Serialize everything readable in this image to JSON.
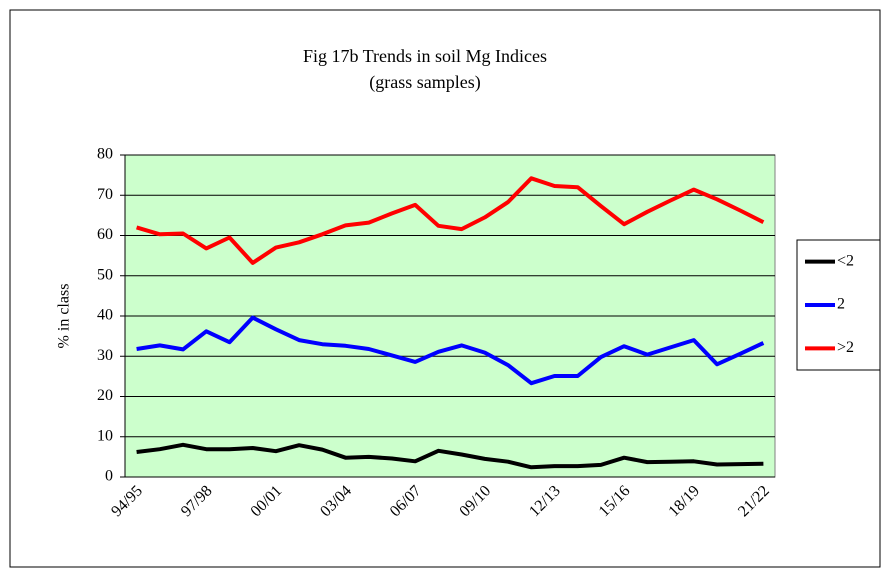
{
  "chart_data": {
    "type": "line",
    "title": "Fig 17b Trends in soil Mg Indices",
    "subtitle": "(grass samples)",
    "y_label": "% in class",
    "categories": [
      "94/95",
      null,
      null,
      "97/98",
      null,
      null,
      "00/01",
      null,
      null,
      "03/04",
      null,
      null,
      "06/07",
      null,
      null,
      "09/10",
      null,
      null,
      "12/13",
      null,
      null,
      "15/16",
      null,
      null,
      "18/19",
      null,
      null,
      "21/22"
    ],
    "series": [
      {
        "name": "<2",
        "color": "#000000",
        "values": [
          6.2,
          6.9,
          8,
          6.9,
          6.9,
          7.2,
          6.4,
          7.9,
          6.8,
          4.8,
          5,
          4.6,
          3.9,
          6.5,
          5.6,
          4.5,
          3.8,
          2.4,
          2.7,
          2.7,
          3,
          4.8,
          3.7,
          3.8,
          3.9,
          3.1,
          3.2,
          3.3
        ]
      },
      {
        "name": "2",
        "color": "#0000ff",
        "values": [
          31.8,
          32.7,
          31.7,
          36.2,
          33.5,
          39.6,
          36.7,
          34,
          33,
          32.6,
          31.8,
          30.2,
          28.6,
          31.1,
          32.7,
          30.9,
          27.8,
          23.3,
          25.1,
          25.1,
          29.8,
          32.5,
          30.4,
          32.2,
          34,
          28,
          30.6,
          33.3
        ]
      },
      {
        "name": ">2",
        "color": "#ff0000",
        "values": [
          62,
          60.3,
          60.5,
          56.8,
          59.5,
          53.2,
          57,
          58.3,
          60.3,
          62.5,
          63.2,
          65.5,
          67.6,
          62.4,
          61.6,
          64.5,
          68.3,
          74.2,
          72.3,
          72,
          67.3,
          62.8,
          65.9,
          68.7,
          71.4,
          69,
          66.2,
          63.3
        ]
      }
    ],
    "ylim": [
      0,
      80
    ],
    "yticks": [
      0,
      10,
      20,
      30,
      40,
      50,
      60,
      70,
      80
    ],
    "grid": true,
    "plot_background": "#ccffcc",
    "legend": "right"
  }
}
